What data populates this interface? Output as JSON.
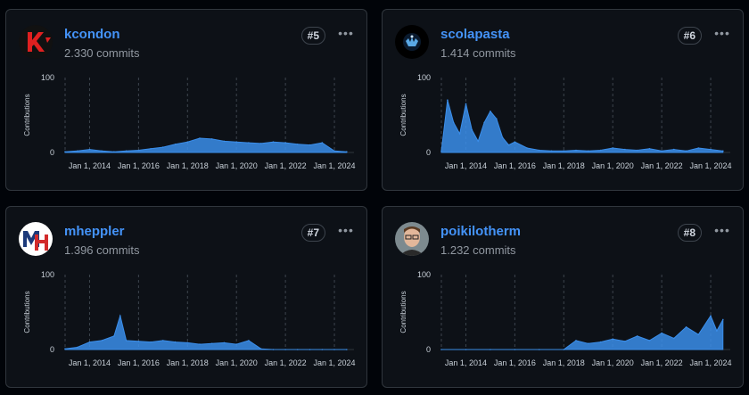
{
  "colors": {
    "accent": "#4493f8",
    "line": "#3b8eea"
  },
  "contributors": [
    {
      "username": "kcondon",
      "commits": "2.330 commits",
      "rank": "#5",
      "avatar_icon": "k-logo-icon",
      "chart_data": {
        "type": "area",
        "ylabel": "Contributions",
        "ylim": [
          0,
          100
        ],
        "yticks": [
          "0",
          "100"
        ],
        "xticks": [
          "Jan 1, 2014",
          "Jan 1, 2016",
          "Jan 1, 2018",
          "Jan 1, 2020",
          "Jan 1, 2022",
          "Jan 1, 2024"
        ],
        "x": [
          "2013-01",
          "2013-07",
          "2014-01",
          "2014-07",
          "2015-01",
          "2015-07",
          "2016-01",
          "2016-07",
          "2017-01",
          "2017-07",
          "2018-01",
          "2018-07",
          "2019-01",
          "2019-07",
          "2020-01",
          "2020-07",
          "2021-01",
          "2021-07",
          "2022-01",
          "2022-07",
          "2023-01",
          "2023-07",
          "2024-01",
          "2024-07"
        ],
        "values": [
          1,
          2,
          4,
          2,
          1,
          2,
          3,
          5,
          7,
          11,
          14,
          19,
          18,
          15,
          14,
          13,
          12,
          14,
          13,
          11,
          10,
          13,
          2,
          1
        ]
      }
    },
    {
      "username": "scolapasta",
      "commits": "1.414 commits",
      "rank": "#6",
      "avatar_icon": "dark-logo-icon",
      "chart_data": {
        "type": "area",
        "ylabel": "Contributions",
        "ylim": [
          0,
          100
        ],
        "yticks": [
          "0",
          "100"
        ],
        "xticks": [
          "Jan 1, 2014",
          "Jan 1, 2016",
          "Jan 1, 2018",
          "Jan 1, 2020",
          "Jan 1, 2022",
          "Jan 1, 2024"
        ],
        "x": [
          "2013-01",
          "2013-04",
          "2013-07",
          "2013-10",
          "2014-01",
          "2014-04",
          "2014-07",
          "2014-10",
          "2015-01",
          "2015-04",
          "2015-07",
          "2015-10",
          "2016-01",
          "2016-07",
          "2017-01",
          "2017-07",
          "2018-01",
          "2018-07",
          "2019-01",
          "2019-07",
          "2020-01",
          "2020-07",
          "2021-01",
          "2021-07",
          "2022-01",
          "2022-07",
          "2023-01",
          "2023-07",
          "2024-01",
          "2024-07"
        ],
        "values": [
          2,
          70,
          40,
          25,
          65,
          30,
          15,
          40,
          55,
          45,
          20,
          10,
          14,
          6,
          3,
          2,
          2,
          3,
          2,
          3,
          6,
          4,
          3,
          5,
          2,
          4,
          2,
          6,
          4,
          2
        ]
      }
    },
    {
      "username": "mheppler",
      "commits": "1.396 commits",
      "rank": "#7",
      "avatar_icon": "mh-logo-icon",
      "chart_data": {
        "type": "area",
        "ylabel": "Contributions",
        "ylim": [
          0,
          100
        ],
        "yticks": [
          "0",
          "100"
        ],
        "xticks": [
          "Jan 1, 2014",
          "Jan 1, 2016",
          "Jan 1, 2018",
          "Jan 1, 2020",
          "Jan 1, 2022",
          "Jan 1, 2024"
        ],
        "x": [
          "2013-01",
          "2013-07",
          "2014-01",
          "2014-07",
          "2015-01",
          "2015-04",
          "2015-07",
          "2016-01",
          "2016-07",
          "2017-01",
          "2017-07",
          "2018-01",
          "2018-07",
          "2019-01",
          "2019-07",
          "2020-01",
          "2020-07",
          "2021-01",
          "2021-07",
          "2022-01",
          "2022-07",
          "2023-01",
          "2023-07",
          "2024-01",
          "2024-07"
        ],
        "values": [
          1,
          3,
          10,
          12,
          18,
          45,
          12,
          11,
          10,
          12,
          10,
          9,
          7,
          8,
          9,
          7,
          12,
          1,
          0,
          0,
          0,
          0,
          0,
          0,
          0
        ]
      }
    },
    {
      "username": "poikilotherm",
      "commits": "1.232 commits",
      "rank": "#8",
      "avatar_icon": "person-avatar-icon",
      "chart_data": {
        "type": "area",
        "ylabel": "Contributions",
        "ylim": [
          0,
          100
        ],
        "yticks": [
          "0",
          "100"
        ],
        "xticks": [
          "Jan 1, 2014",
          "Jan 1, 2016",
          "Jan 1, 2018",
          "Jan 1, 2020",
          "Jan 1, 2022",
          "Jan 1, 2024"
        ],
        "x": [
          "2013-01",
          "2014-01",
          "2015-01",
          "2016-01",
          "2017-01",
          "2018-01",
          "2018-07",
          "2019-01",
          "2019-07",
          "2020-01",
          "2020-07",
          "2021-01",
          "2021-07",
          "2022-01",
          "2022-07",
          "2023-01",
          "2023-07",
          "2024-01",
          "2024-04",
          "2024-07"
        ],
        "values": [
          0,
          0,
          0,
          0,
          0,
          0,
          12,
          8,
          10,
          14,
          11,
          18,
          12,
          22,
          15,
          30,
          20,
          45,
          25,
          40
        ]
      }
    }
  ]
}
